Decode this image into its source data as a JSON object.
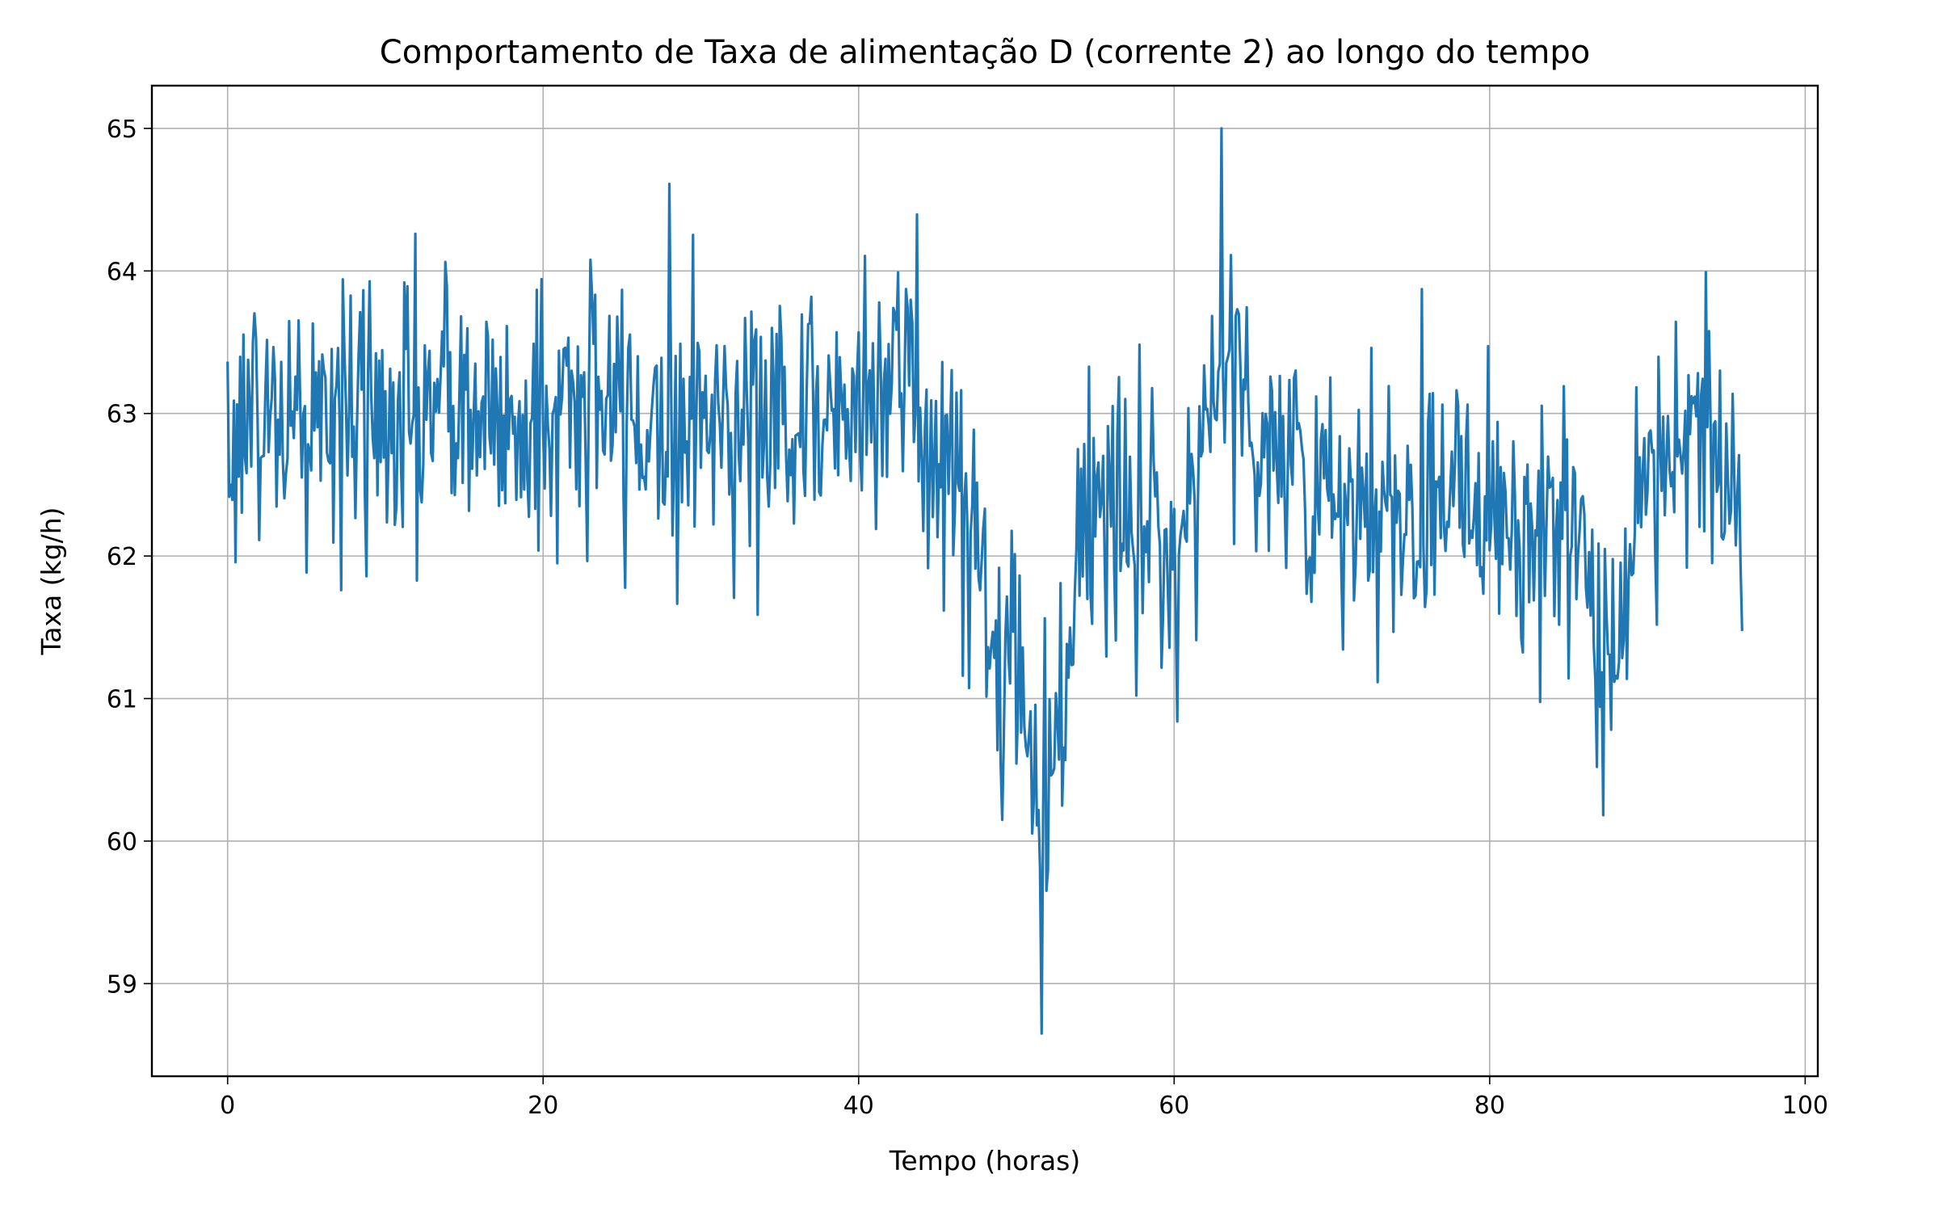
{
  "chart_data": {
    "type": "line",
    "title": "Comportamento de Taxa de alimentação D (corrente 2) ao longo do tempo",
    "xlabel": "Tempo (horas)",
    "ylabel": "Taxa (kg/h)",
    "xlim": [
      -4.8,
      100.8
    ],
    "ylim": [
      58.35,
      65.3
    ],
    "xticks": [
      0,
      20,
      40,
      60,
      80,
      100
    ],
    "yticks": [
      59,
      60,
      61,
      62,
      63,
      64,
      65
    ],
    "grid": true,
    "legend": "none",
    "line_color": "#1f77b4",
    "series": [
      {
        "x": [
          0,
          2,
          4,
          6,
          8,
          10,
          12,
          14,
          16,
          18,
          20,
          22,
          24,
          26,
          28,
          30,
          32,
          34,
          36,
          38,
          40,
          42,
          44,
          45,
          46,
          47,
          48,
          49,
          50,
          51,
          52,
          53,
          54,
          56,
          58,
          60,
          62,
          63,
          64,
          65,
          66,
          68,
          70,
          72,
          74,
          76,
          78,
          80,
          82,
          84,
          85,
          86,
          87,
          88,
          90,
          92,
          94,
          96
        ],
        "y": [
          62.9,
          63.0,
          62.9,
          63.0,
          62.95,
          62.95,
          63.0,
          63.05,
          63.0,
          62.95,
          62.95,
          63.05,
          63.05,
          62.95,
          63.0,
          62.95,
          63.0,
          63.0,
          63.0,
          62.95,
          63.2,
          63.3,
          63.0,
          62.7,
          62.7,
          62.2,
          61.6,
          61.3,
          61.2,
          60.6,
          60.5,
          61.1,
          62.2,
          62.3,
          62.2,
          62.0,
          63.0,
          63.3,
          63.3,
          63.0,
          62.8,
          62.6,
          62.3,
          62.1,
          62.3,
          62.5,
          62.6,
          62.5,
          62.2,
          62.3,
          62.0,
          61.9,
          61.1,
          61.1,
          62.9,
          62.8,
          62.9,
          62.5
        ],
        "noise_amplitude": 0.5
      }
    ],
    "extremes": {
      "max": [
        63.0,
        65.0
      ],
      "min": [
        51.6,
        58.65
      ]
    }
  }
}
